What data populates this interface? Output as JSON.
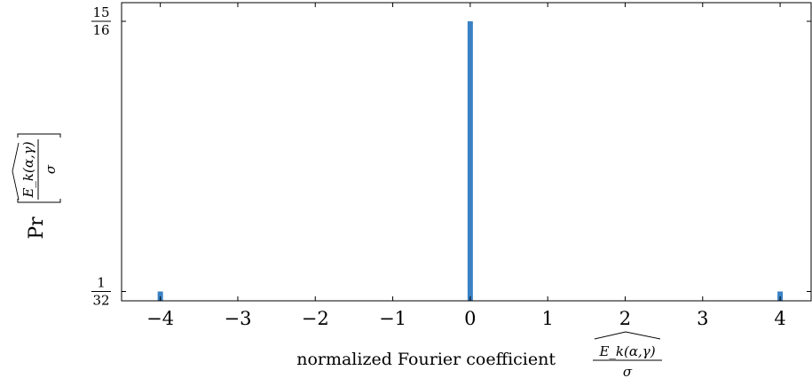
{
  "chart_data": {
    "type": "bar",
    "title": "",
    "xlabel": "normalized Fourier coefficient",
    "xlabel_fraction": {
      "numerator": "E_k(α,γ)",
      "denominator": "σ"
    },
    "ylabel": "Pr",
    "ylabel_fraction": {
      "numerator": "E_k(α,γ)",
      "denominator": "σ"
    },
    "xlim": [
      -4.5,
      4.4
    ],
    "ylim": [
      0,
      1.0
    ],
    "grid": false,
    "x_ticks": [
      {
        "value": -4,
        "label": "−4"
      },
      {
        "value": -3,
        "label": "−3"
      },
      {
        "value": -2,
        "label": "−2"
      },
      {
        "value": -1,
        "label": "−1"
      },
      {
        "value": 0,
        "label": "0"
      },
      {
        "value": 1,
        "label": "1"
      },
      {
        "value": 2,
        "label": "2"
      },
      {
        "value": 3,
        "label": "3"
      },
      {
        "value": 4,
        "label": "4"
      }
    ],
    "y_ticks": [
      {
        "value": 0.03125,
        "numerator": "1",
        "denominator": "32"
      },
      {
        "value": 0.9375,
        "numerator": "15",
        "denominator": "16"
      }
    ],
    "bars": [
      {
        "x": -4,
        "value": 0.03125
      },
      {
        "x": 0,
        "value": 0.9375
      },
      {
        "x": 4,
        "value": 0.03125
      }
    ],
    "bar_color": "#3b82c4"
  }
}
